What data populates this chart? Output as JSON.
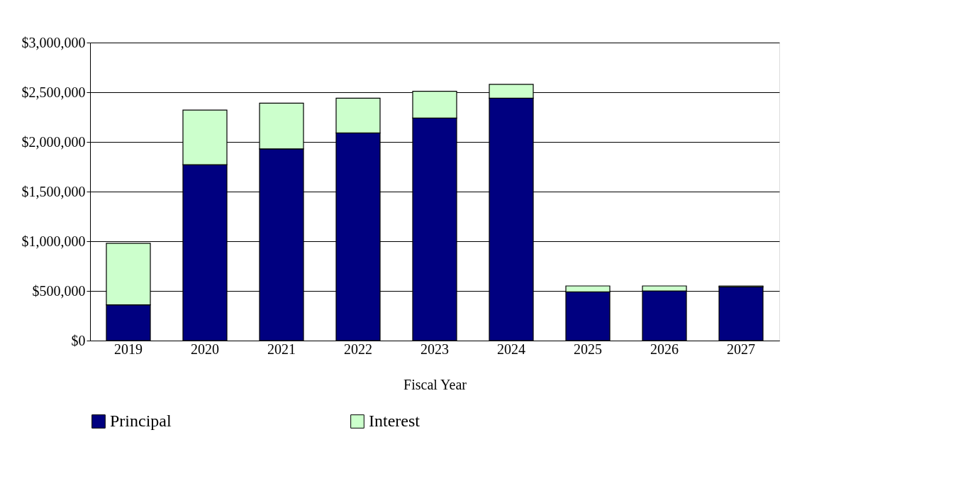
{
  "chart_data": {
    "type": "bar",
    "stacked": true,
    "xlabel": "Fiscal Year",
    "categories": [
      "2019",
      "2020",
      "2021",
      "2022",
      "2023",
      "2024",
      "2025",
      "2026",
      "2027"
    ],
    "series": [
      {
        "name": "Principal",
        "color": "#000080",
        "values": [
          360000,
          1770000,
          1930000,
          2090000,
          2240000,
          2440000,
          490000,
          500000,
          540000
        ]
      },
      {
        "name": "Interest",
        "color": "#ccffcc",
        "values": [
          620000,
          550000,
          460000,
          350000,
          270000,
          140000,
          60000,
          50000,
          10000
        ]
      }
    ],
    "ylim": [
      0,
      3000000
    ],
    "yticks": [
      {
        "value": 0,
        "label": "$0"
      },
      {
        "value": 500000,
        "label": "$500,000"
      },
      {
        "value": 1000000,
        "label": "$1,000,000"
      },
      {
        "value": 1500000,
        "label": "$1,500,000"
      },
      {
        "value": 2000000,
        "label": "$2,000,000"
      },
      {
        "value": 2500000,
        "label": "$2,500,000"
      },
      {
        "value": 3000000,
        "label": "$3,000,000"
      }
    ],
    "grid": "y",
    "legend": "bottom"
  }
}
